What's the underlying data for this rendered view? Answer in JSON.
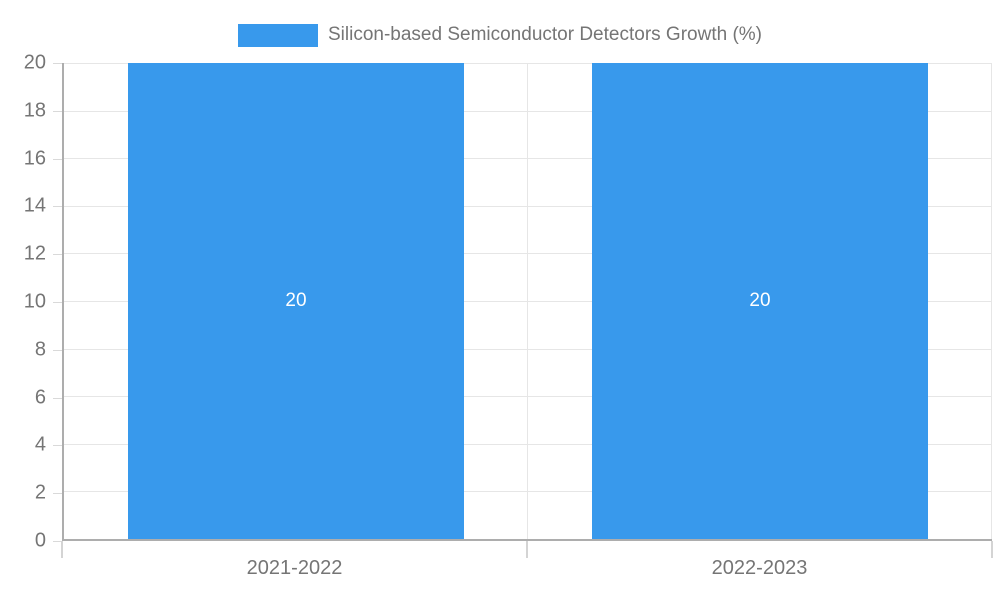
{
  "chart_data": {
    "type": "bar",
    "title": "Silicon-based Semiconductor Detectors Growth (%)",
    "categories": [
      "2021-2022",
      "2022-2023"
    ],
    "series": [
      {
        "name": "Silicon-based Semiconductor Detectors Growth (%)",
        "values": [
          20,
          20
        ]
      }
    ],
    "value_labels": [
      "20",
      "20"
    ],
    "xlabel": "",
    "ylabel": "",
    "ylim": [
      0,
      20
    ],
    "ytick_step": 2,
    "yticks": [
      0,
      2,
      4,
      6,
      8,
      10,
      12,
      14,
      16,
      18,
      20
    ],
    "grid": true,
    "legend_position": "top",
    "bar_band_fraction": 0.725,
    "colors": {
      "bar": "#3899EC",
      "grid": "#E6E6E6",
      "axis": "#ADADAD",
      "tick": "#D9D9D9",
      "axis_text": "#757575",
      "legend_text": "#757575",
      "value_label_text": "#FFFFFF",
      "background": "#FFFFFF"
    }
  }
}
